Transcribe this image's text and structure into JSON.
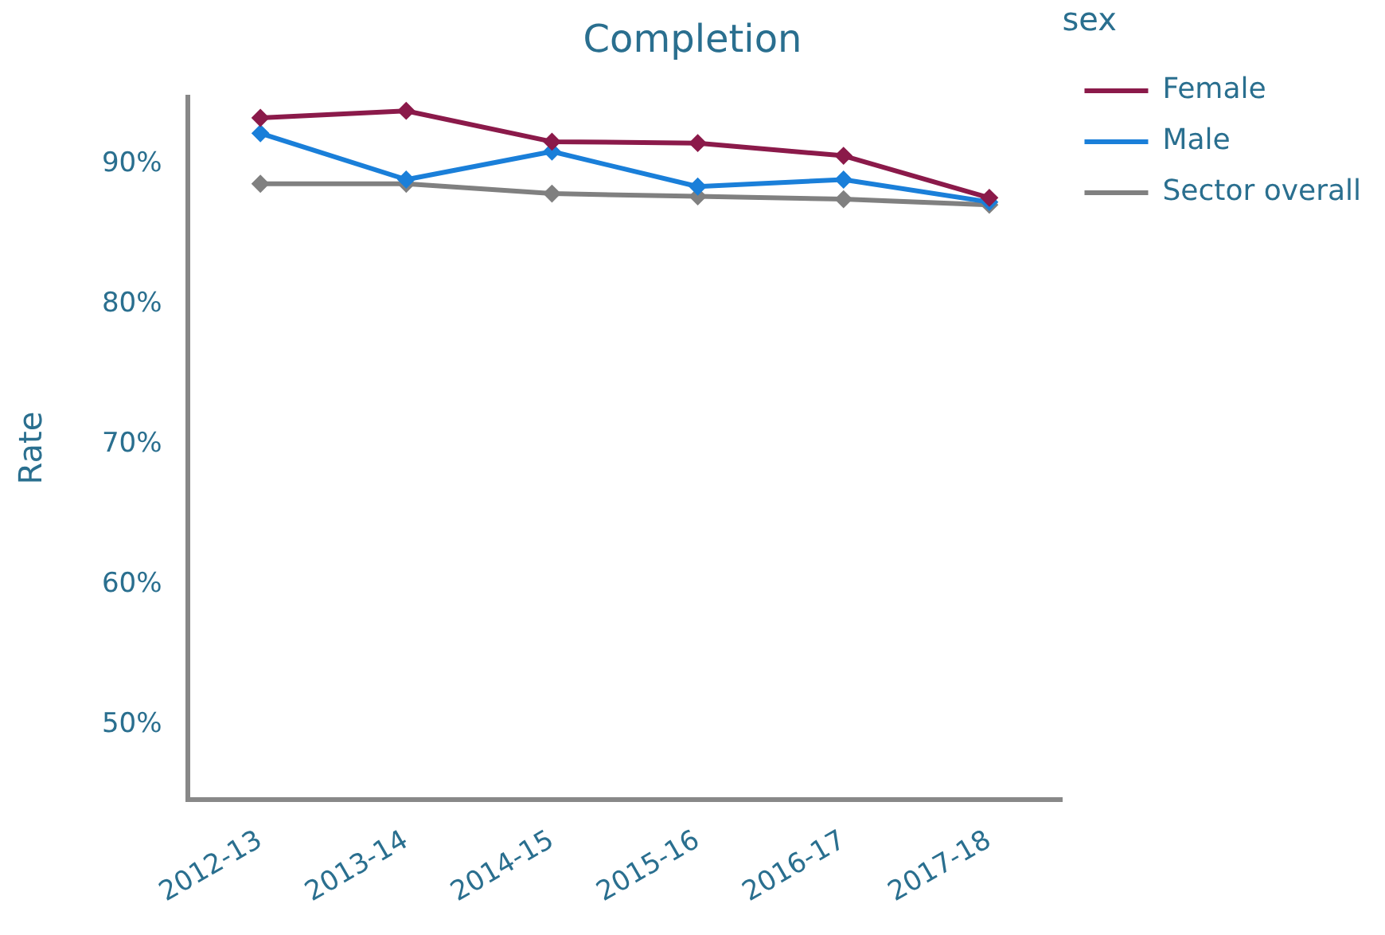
{
  "chart_data": {
    "type": "line",
    "title": "Completion",
    "ylabel": "Rate",
    "legend_title": "sex",
    "legend": "top right",
    "marker": "diamond",
    "grid": false,
    "categories": [
      "2012-13",
      "2013-14",
      "2014-15",
      "2015-16",
      "2016-17",
      "2017-18"
    ],
    "ylim": [
      44.7,
      94.8
    ],
    "yticks": [
      {
        "value": 50,
        "label": "50%"
      },
      {
        "value": 60,
        "label": "60%"
      },
      {
        "value": 70,
        "label": "70%"
      },
      {
        "value": 80,
        "label": "80%"
      },
      {
        "value": 90,
        "label": "90%"
      }
    ],
    "series": [
      {
        "name": "Female",
        "color": "#8b1a4a",
        "values": [
          93.3,
          93.8,
          91.6,
          91.5,
          90.6,
          87.6
        ]
      },
      {
        "name": "Male",
        "color": "#1a7fd9",
        "values": [
          92.2,
          88.9,
          90.9,
          88.4,
          88.9,
          87.3
        ]
      },
      {
        "name": "Sector overall",
        "color": "#808080",
        "values": [
          88.6,
          88.6,
          87.9,
          87.7,
          87.5,
          87.1
        ]
      }
    ]
  }
}
